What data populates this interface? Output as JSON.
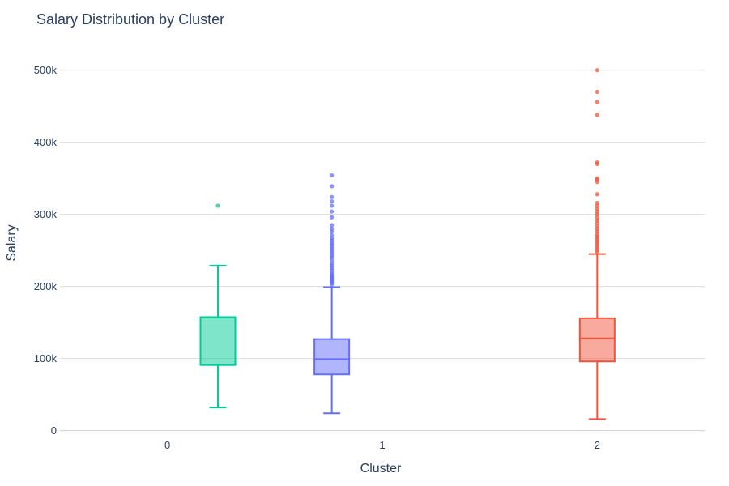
{
  "chart_data": {
    "type": "box",
    "title": "Salary Distribution by Cluster",
    "xlabel": "Cluster",
    "ylabel": "Salary",
    "categories": [
      "0",
      "1",
      "2"
    ],
    "yticks": [
      {
        "value": 0,
        "label": "0"
      },
      {
        "value": 100000,
        "label": "100k"
      },
      {
        "value": 200000,
        "label": "200k"
      },
      {
        "value": 300000,
        "label": "300k"
      },
      {
        "value": 400000,
        "label": "400k"
      },
      {
        "value": 500000,
        "label": "500k"
      }
    ],
    "xlim": [
      -0.5,
      2.5
    ],
    "ylim": [
      -15000,
      530000
    ],
    "grid": true,
    "series": [
      {
        "category": "0",
        "x": 0.235,
        "color": "#00cc96",
        "min": 32000,
        "q1": 91000,
        "median": 157000,
        "q3": 157500,
        "max": 229000,
        "outliers": [
          312000
        ]
      },
      {
        "category": "1",
        "x": 0.765,
        "color": "#636efa",
        "min": 24000,
        "q1": 78000,
        "median": 99000,
        "q3": 127000,
        "max": 199000,
        "outliers": [
          203000,
          205000,
          207000,
          209000,
          211000,
          213000,
          215000,
          217000,
          220000,
          223000,
          226000,
          229000,
          232000,
          236000,
          240000,
          243000,
          246000,
          249000,
          252000,
          255000,
          258000,
          261000,
          264000,
          267000,
          271000,
          276000,
          280000,
          285000,
          296000,
          304000,
          312000,
          318000,
          324000,
          339000,
          354000
        ]
      },
      {
        "category": "2",
        "x": 2.0,
        "color": "#ef553b",
        "min": 16000,
        "q1": 96000,
        "median": 128000,
        "q3": 156000,
        "max": 245000,
        "outliers": [
          248000,
          251000,
          254000,
          257000,
          260000,
          263000,
          266000,
          269000,
          272000,
          276000,
          280000,
          284000,
          288000,
          292000,
          296000,
          300000,
          304000,
          308000,
          312000,
          316000,
          328000,
          345000,
          348000,
          350000,
          370000,
          372000,
          438000,
          456000,
          470000,
          500000
        ]
      }
    ]
  }
}
